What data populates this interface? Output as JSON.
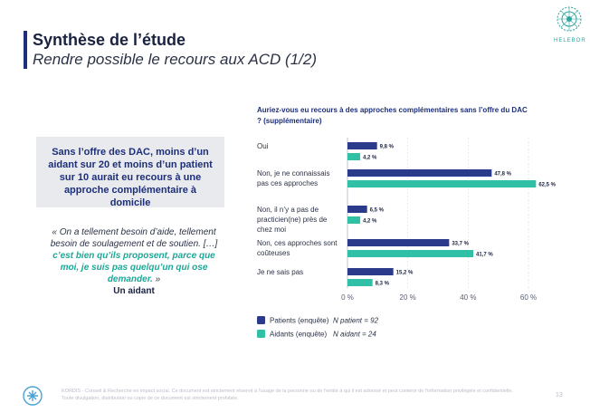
{
  "slide": {
    "title": "Synthèse de l’étude",
    "subtitle": "Rendre possible le recours aux ACD (1/2)",
    "logo_text": "HELEBOR"
  },
  "summary": "Sans l’offre des DAC, moins d’un aidant sur 20 et moins d’un patient sur 10 aurait eu recours à une approche complémentaire à domicile",
  "quote": {
    "before": "« On a tellement besoin d’aide, tellement besoin de soulagement et de soutien. […] ",
    "highlight": "c’est bien qu’ils proposent, parce que moi, je suis pas quelqu’un qui ose demander.",
    "after": " »",
    "author": "Un aidant"
  },
  "chart_data": {
    "type": "bar",
    "orientation": "horizontal",
    "title": "Auriez-vous eu recours à des approches complémentaires sans l’offre du DAC ? (supplémentaire)",
    "categories": [
      [
        "Oui"
      ],
      [
        "Non, je ne connaissais",
        "pas ces approches"
      ],
      [
        "Non, il n’y a pas de",
        "practicien(ne) près de",
        "chez moi"
      ],
      [
        "Non, ces approches sont",
        "coûteuses"
      ],
      [
        "Je ne sais pas"
      ]
    ],
    "series": [
      {
        "name": "Patients (enquête)",
        "n_label": "N patient = 92",
        "color": "#2c3a8c",
        "values": [
          9.8,
          47.8,
          6.5,
          33.7,
          15.2
        ],
        "labels": [
          "9,8 %",
          "47,8 %",
          "6,5 %",
          "33,7 %",
          "15,2 %"
        ]
      },
      {
        "name": "Aidants (enquête)",
        "n_label": "N aidant = 24",
        "color": "#2fc0a6",
        "values": [
          4.2,
          62.5,
          4.2,
          41.7,
          8.3
        ],
        "labels": [
          "4,2 %",
          "62,5 %",
          "4,2 %",
          "41,7 %",
          "8,3 %"
        ]
      }
    ],
    "xlim": [
      0,
      60
    ],
    "xticks": [
      "0 %",
      "20 %",
      "40 %",
      "60 %"
    ],
    "grid": true,
    "legend_position": "bottom-left"
  },
  "footer": {
    "text": "KORDIS - Conseil & Recherche en impact social. Ce document est strictement réservé à l’usage de la personne ou de l’entité à qui il est adressé et peut contenir de l’information privilégiée et confidentielle. Toute divulgation, distribution ou copie de ce document est strictement prohibée.",
    "page": "13"
  }
}
